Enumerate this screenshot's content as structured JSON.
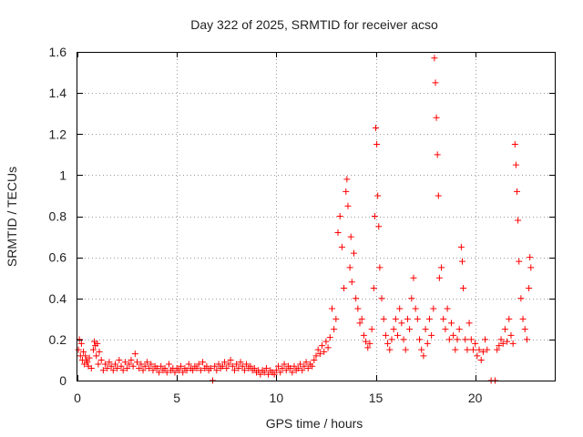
{
  "chart_data": {
    "type": "scatter",
    "title": "Day 322 of 2025, SRMTID for receiver acso",
    "xlabel": "GPS time / hours",
    "ylabel": "SRMTID / TECUs",
    "xlim": [
      0,
      24
    ],
    "ylim": [
      0,
      1.6
    ],
    "xticks": [
      0,
      5,
      10,
      15,
      20
    ],
    "xtick_labels": [
      "0",
      "5",
      "10",
      "15",
      "20"
    ],
    "yticks": [
      0,
      0.2,
      0.4,
      0.6,
      0.8,
      1.0,
      1.2,
      1.4,
      1.6
    ],
    "ytick_labels": [
      "0",
      "0.2",
      "0.4",
      "0.6",
      "0.8",
      "1",
      "1.2",
      "1.4",
      "1.6"
    ],
    "grid": true,
    "marker": "+",
    "color": "#ff0000",
    "series": [
      {
        "name": "SRMTID",
        "points": [
          [
            0.05,
            0.15
          ],
          [
            0.1,
            0.2
          ],
          [
            0.15,
            0.12
          ],
          [
            0.2,
            0.18
          ],
          [
            0.25,
            0.1
          ],
          [
            0.3,
            0.14
          ],
          [
            0.35,
            0.08
          ],
          [
            0.4,
            0.12
          ],
          [
            0.45,
            0.1
          ],
          [
            0.5,
            0.09
          ],
          [
            0.55,
            0.07
          ],
          [
            0.6,
            0.11
          ],
          [
            0.7,
            0.06
          ],
          [
            0.8,
            0.15
          ],
          [
            0.85,
            0.19
          ],
          [
            0.9,
            0.17
          ],
          [
            0.95,
            0.12
          ],
          [
            1.0,
            0.18
          ],
          [
            1.05,
            0.08
          ],
          [
            1.1,
            0.14
          ],
          [
            1.2,
            0.1
          ],
          [
            1.3,
            0.05
          ],
          [
            1.4,
            0.08
          ],
          [
            1.5,
            0.06
          ],
          [
            1.6,
            0.09
          ],
          [
            1.7,
            0.07
          ],
          [
            1.8,
            0.05
          ],
          [
            1.9,
            0.08
          ],
          [
            2.0,
            0.06
          ],
          [
            2.1,
            0.1
          ],
          [
            2.2,
            0.07
          ],
          [
            2.3,
            0.05
          ],
          [
            2.4,
            0.09
          ],
          [
            2.5,
            0.06
          ],
          [
            2.6,
            0.08
          ],
          [
            2.7,
            0.1
          ],
          [
            2.8,
            0.07
          ],
          [
            2.9,
            0.13
          ],
          [
            3.0,
            0.09
          ],
          [
            3.1,
            0.06
          ],
          [
            3.2,
            0.08
          ],
          [
            3.3,
            0.05
          ],
          [
            3.4,
            0.07
          ],
          [
            3.5,
            0.09
          ],
          [
            3.6,
            0.06
          ],
          [
            3.7,
            0.08
          ],
          [
            3.8,
            0.05
          ],
          [
            3.9,
            0.07
          ],
          [
            4.0,
            0.06
          ],
          [
            4.1,
            0.04
          ],
          [
            4.2,
            0.07
          ],
          [
            4.3,
            0.05
          ],
          [
            4.4,
            0.06
          ],
          [
            4.5,
            0.04
          ],
          [
            4.6,
            0.08
          ],
          [
            4.7,
            0.05
          ],
          [
            4.8,
            0.06
          ],
          [
            4.9,
            0.04
          ],
          [
            5.0,
            0.06
          ],
          [
            5.1,
            0.05
          ],
          [
            5.2,
            0.07
          ],
          [
            5.3,
            0.04
          ],
          [
            5.4,
            0.06
          ],
          [
            5.5,
            0.05
          ],
          [
            5.6,
            0.08
          ],
          [
            5.7,
            0.06
          ],
          [
            5.8,
            0.05
          ],
          [
            5.9,
            0.07
          ],
          [
            6.0,
            0.06
          ],
          [
            6.1,
            0.08
          ],
          [
            6.2,
            0.05
          ],
          [
            6.3,
            0.09
          ],
          [
            6.4,
            0.06
          ],
          [
            6.5,
            0.07
          ],
          [
            6.6,
            0.05
          ],
          [
            6.7,
            0.06
          ],
          [
            6.8,
            0.0
          ],
          [
            6.9,
            0.07
          ],
          [
            7.0,
            0.05
          ],
          [
            7.1,
            0.08
          ],
          [
            7.2,
            0.06
          ],
          [
            7.3,
            0.07
          ],
          [
            7.4,
            0.09
          ],
          [
            7.5,
            0.06
          ],
          [
            7.6,
            0.08
          ],
          [
            7.7,
            0.1
          ],
          [
            7.8,
            0.07
          ],
          [
            7.9,
            0.05
          ],
          [
            8.0,
            0.08
          ],
          [
            8.1,
            0.06
          ],
          [
            8.2,
            0.09
          ],
          [
            8.3,
            0.07
          ],
          [
            8.4,
            0.05
          ],
          [
            8.5,
            0.08
          ],
          [
            8.6,
            0.06
          ],
          [
            8.7,
            0.07
          ],
          [
            8.8,
            0.05
          ],
          [
            8.9,
            0.06
          ],
          [
            9.0,
            0.04
          ],
          [
            9.1,
            0.05
          ],
          [
            9.2,
            0.03
          ],
          [
            9.3,
            0.05
          ],
          [
            9.4,
            0.04
          ],
          [
            9.5,
            0.06
          ],
          [
            9.6,
            0.03
          ],
          [
            9.7,
            0.05
          ],
          [
            9.8,
            0.04
          ],
          [
            9.9,
            0.03
          ],
          [
            10.0,
            0.05
          ],
          [
            10.1,
            0.07
          ],
          [
            10.2,
            0.04
          ],
          [
            10.3,
            0.06
          ],
          [
            10.4,
            0.08
          ],
          [
            10.5,
            0.05
          ],
          [
            10.6,
            0.07
          ],
          [
            10.7,
            0.06
          ],
          [
            10.8,
            0.04
          ],
          [
            10.9,
            0.07
          ],
          [
            11.0,
            0.05
          ],
          [
            11.1,
            0.06
          ],
          [
            11.2,
            0.08
          ],
          [
            11.3,
            0.05
          ],
          [
            11.4,
            0.07
          ],
          [
            11.5,
            0.09
          ],
          [
            11.6,
            0.06
          ],
          [
            11.7,
            0.08
          ],
          [
            11.8,
            0.07
          ],
          [
            11.9,
            0.1
          ],
          [
            12.0,
            0.12
          ],
          [
            12.1,
            0.15
          ],
          [
            12.2,
            0.13
          ],
          [
            12.3,
            0.17
          ],
          [
            12.4,
            0.14
          ],
          [
            12.5,
            0.19
          ],
          [
            12.6,
            0.16
          ],
          [
            12.7,
            0.21
          ],
          [
            12.8,
            0.35
          ],
          [
            12.9,
            0.25
          ],
          [
            13.0,
            0.3
          ],
          [
            13.1,
            0.72
          ],
          [
            13.2,
            0.8
          ],
          [
            13.3,
            0.65
          ],
          [
            13.4,
            0.45
          ],
          [
            13.5,
            0.92
          ],
          [
            13.55,
            0.98
          ],
          [
            13.6,
            0.85
          ],
          [
            13.7,
            0.55
          ],
          [
            13.75,
            0.7
          ],
          [
            13.8,
            0.48
          ],
          [
            13.9,
            0.62
          ],
          [
            14.0,
            0.4
          ],
          [
            14.1,
            0.35
          ],
          [
            14.2,
            0.28
          ],
          [
            14.3,
            0.3
          ],
          [
            14.4,
            0.22
          ],
          [
            14.5,
            0.19
          ],
          [
            14.6,
            0.16
          ],
          [
            14.7,
            0.18
          ],
          [
            14.8,
            0.25
          ],
          [
            14.9,
            0.45
          ],
          [
            14.95,
            0.8
          ],
          [
            15.0,
            1.23
          ],
          [
            15.05,
            1.15
          ],
          [
            15.1,
            0.9
          ],
          [
            15.15,
            0.75
          ],
          [
            15.2,
            0.55
          ],
          [
            15.3,
            0.4
          ],
          [
            15.4,
            0.3
          ],
          [
            15.5,
            0.22
          ],
          [
            15.6,
            0.18
          ],
          [
            15.7,
            0.15
          ],
          [
            15.8,
            0.2
          ],
          [
            15.9,
            0.25
          ],
          [
            16.0,
            0.3
          ],
          [
            16.1,
            0.22
          ],
          [
            16.2,
            0.35
          ],
          [
            16.3,
            0.28
          ],
          [
            16.4,
            0.2
          ],
          [
            16.5,
            0.15
          ],
          [
            16.6,
            0.3
          ],
          [
            16.7,
            0.25
          ],
          [
            16.8,
            0.4
          ],
          [
            16.9,
            0.5
          ],
          [
            17.0,
            0.35
          ],
          [
            17.1,
            0.3
          ],
          [
            17.2,
            0.2
          ],
          [
            17.3,
            0.15
          ],
          [
            17.4,
            0.12
          ],
          [
            17.5,
            0.25
          ],
          [
            17.6,
            0.18
          ],
          [
            17.7,
            0.3
          ],
          [
            17.8,
            0.22
          ],
          [
            17.9,
            0.35
          ],
          [
            17.95,
            1.57
          ],
          [
            18.0,
            1.45
          ],
          [
            18.05,
            1.28
          ],
          [
            18.1,
            1.1
          ],
          [
            18.15,
            0.9
          ],
          [
            18.2,
            0.5
          ],
          [
            18.3,
            0.55
          ],
          [
            18.4,
            0.3
          ],
          [
            18.5,
            0.25
          ],
          [
            18.6,
            0.35
          ],
          [
            18.7,
            0.2
          ],
          [
            18.8,
            0.28
          ],
          [
            18.9,
            0.22
          ],
          [
            19.0,
            0.15
          ],
          [
            19.1,
            0.2
          ],
          [
            19.2,
            0.25
          ],
          [
            19.3,
            0.65
          ],
          [
            19.35,
            0.58
          ],
          [
            19.4,
            0.45
          ],
          [
            19.5,
            0.2
          ],
          [
            19.6,
            0.15
          ],
          [
            19.7,
            0.28
          ],
          [
            19.8,
            0.2
          ],
          [
            19.9,
            0.15
          ],
          [
            20.0,
            0.18
          ],
          [
            20.1,
            0.12
          ],
          [
            20.2,
            0.15
          ],
          [
            20.3,
            0.1
          ],
          [
            20.4,
            0.14
          ],
          [
            20.5,
            0.2
          ],
          [
            20.6,
            0.15
          ],
          [
            20.8,
            0.0
          ],
          [
            21.0,
            0.0
          ],
          [
            21.1,
            0.15
          ],
          [
            21.2,
            0.17
          ],
          [
            21.3,
            0.2
          ],
          [
            21.4,
            0.18
          ],
          [
            21.5,
            0.25
          ],
          [
            21.6,
            0.19
          ],
          [
            21.7,
            0.3
          ],
          [
            21.8,
            0.22
          ],
          [
            21.9,
            0.18
          ],
          [
            22.0,
            1.15
          ],
          [
            22.05,
            1.05
          ],
          [
            22.1,
            0.92
          ],
          [
            22.15,
            0.78
          ],
          [
            22.2,
            0.58
          ],
          [
            22.3,
            0.4
          ],
          [
            22.4,
            0.3
          ],
          [
            22.5,
            0.25
          ],
          [
            22.6,
            0.2
          ],
          [
            22.7,
            0.45
          ],
          [
            22.75,
            0.6
          ],
          [
            22.8,
            0.55
          ]
        ]
      }
    ]
  }
}
